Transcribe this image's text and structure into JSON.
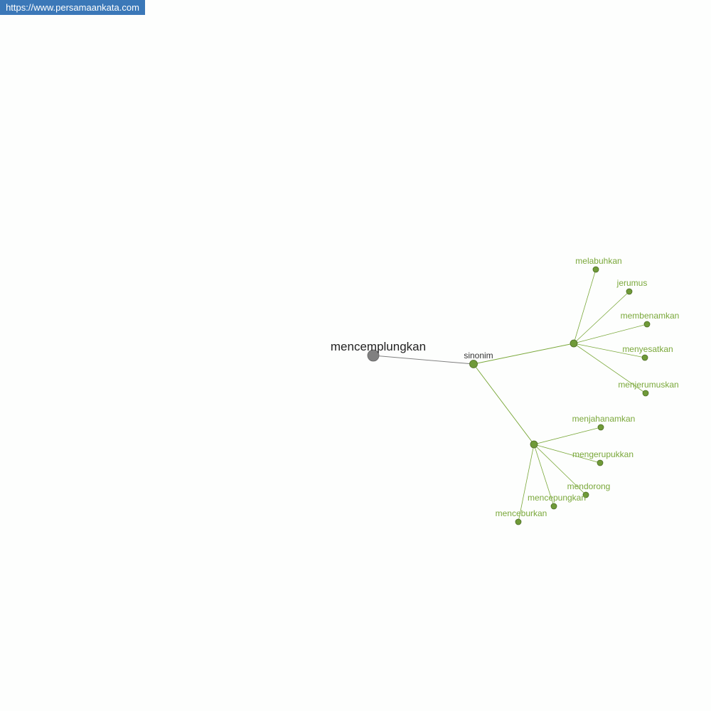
{
  "site_badge": "https://www.persamaankata.com",
  "graph": {
    "root": "mencemplungkan",
    "relation": "sinonim",
    "colors": {
      "root_node": "#808080",
      "edge_root": "#7f7f7f",
      "green_node": "#6f9a38",
      "green_edge": "#7aa83a",
      "label_green": "#7aa83a",
      "label_dark": "#333333"
    },
    "groups": [
      {
        "words": [
          "melabuhkan",
          "jerumus",
          "membenamkan",
          "menyesatkan",
          "menjerumuskan"
        ]
      },
      {
        "words": [
          "menjahanamkan",
          "mengerupukkan",
          "mendorong",
          "mencepungkan",
          "menceburkan"
        ]
      }
    ]
  }
}
